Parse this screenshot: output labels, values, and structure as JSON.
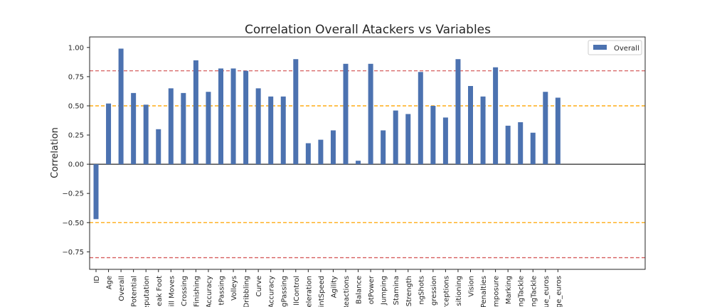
{
  "chart_data": {
    "type": "bar",
    "title": "Correlation Overall Atackers vs Variables",
    "xlabel": "",
    "ylabel": "Correlation",
    "ylim": [
      -0.9,
      1.09
    ],
    "yticks": [
      -0.75,
      -0.5,
      -0.25,
      0.0,
      0.25,
      0.5,
      0.75,
      1.0
    ],
    "ytick_labels": [
      "−0.75",
      "−0.50",
      "−0.25",
      "0.00",
      "0.25",
      "0.50",
      "0.75",
      "1.00"
    ],
    "categories": [
      "ID",
      "Age",
      "Overall",
      "Potential",
      "eputation",
      "eak Foot",
      "ill Moves",
      "Crossing",
      "Finishing",
      "Accuracy",
      "tPassing",
      "Volleys",
      "Dribbling",
      "Curve",
      "Accuracy",
      "gPassing",
      "llControl",
      "eleration",
      "intSpeed",
      "Agility",
      "Reactions",
      "Balance",
      "otPower",
      "Jumping",
      "Stamina",
      "Strength",
      "ngShots",
      "gression",
      "rceptions",
      "sitioning",
      "Vision",
      "Penalties",
      "mposure",
      "Marking",
      "ngTackle",
      "ngTackle",
      "ue_euros",
      "ge_euros"
    ],
    "series": [
      {
        "name": "Overall",
        "color": "#4c72b0",
        "values": [
          -0.47,
          0.52,
          0.99,
          0.61,
          0.51,
          0.3,
          0.65,
          0.61,
          0.89,
          0.62,
          0.82,
          0.82,
          0.8,
          0.65,
          0.58,
          0.58,
          0.9,
          0.18,
          0.21,
          0.29,
          0.86,
          0.03,
          0.86,
          0.29,
          0.46,
          0.43,
          0.79,
          0.5,
          0.4,
          0.9,
          0.67,
          0.58,
          0.83,
          0.33,
          0.36,
          0.27,
          0.62,
          0.57
        ]
      }
    ],
    "reference_lines": [
      {
        "y": 0.8,
        "color": "#d65f5f",
        "style": "dashed"
      },
      {
        "y": 0.5,
        "color": "#ffa500",
        "style": "dashed"
      },
      {
        "y": 0.0,
        "color": "#262626",
        "style": "solid"
      },
      {
        "y": -0.5,
        "color": "#ffa500",
        "style": "dashed"
      },
      {
        "y": -0.8,
        "color": "#d65f5f",
        "style": "dashed"
      }
    ],
    "legend_position": "top-right",
    "grid": false
  }
}
